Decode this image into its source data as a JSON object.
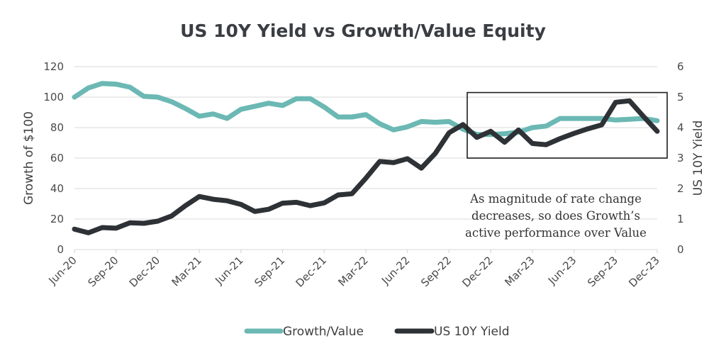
{
  "chart_data": {
    "type": "line",
    "title": "US 10Y Yield vs Growth/Value Equity",
    "xlabel": "",
    "ylabel": "Growth of $100",
    "y2label": "US 10Y Yield",
    "ylim": [
      0,
      120
    ],
    "y2lim": [
      0,
      6
    ],
    "yticks": [
      "0",
      "20",
      "40",
      "60",
      "80",
      "100",
      "120"
    ],
    "y2ticks": [
      "0",
      "1",
      "2",
      "3",
      "4",
      "5",
      "6"
    ],
    "xtick_labels": [
      "Jun-20",
      "Sep-20",
      "Dec-20",
      "Mar-21",
      "Jun-21",
      "Sep-21",
      "Dec-21",
      "Mar-22",
      "Jun-22",
      "Sep-22",
      "Dec-22",
      "Mar-23",
      "Jun-23",
      "Sep-23",
      "Dec-23"
    ],
    "x": [
      "Jun-20",
      "Jul-20",
      "Aug-20",
      "Sep-20",
      "Oct-20",
      "Nov-20",
      "Dec-20",
      "Jan-21",
      "Feb-21",
      "Mar-21",
      "Apr-21",
      "May-21",
      "Jun-21",
      "Jul-21",
      "Aug-21",
      "Sep-21",
      "Oct-21",
      "Nov-21",
      "Dec-21",
      "Jan-22",
      "Feb-22",
      "Mar-22",
      "Apr-22",
      "May-22",
      "Jun-22",
      "Jul-22",
      "Aug-22",
      "Sep-22",
      "Oct-22",
      "Nov-22",
      "Dec-22",
      "Jan-23",
      "Feb-23",
      "Mar-23",
      "Apr-23",
      "May-23",
      "Jun-23",
      "Jul-23",
      "Aug-23",
      "Sep-23",
      "Oct-23",
      "Nov-23",
      "Dec-23"
    ],
    "grid": true,
    "legend_position": "bottom-center",
    "series": [
      {
        "name": "Growth/Value",
        "axis": "left",
        "color": "#6bb8b4",
        "values": [
          100,
          106,
          109,
          108.5,
          106.5,
          100.5,
          100,
          97,
          92.5,
          87.5,
          89,
          86,
          92,
          94,
          96,
          94.5,
          99,
          99,
          93.5,
          87,
          87,
          88.5,
          82.5,
          78.5,
          80.5,
          84,
          83.5,
          84,
          79,
          75.5,
          75.5,
          76,
          77,
          80,
          81,
          86,
          86,
          86,
          86,
          85,
          85.5,
          86,
          84.5
        ]
      },
      {
        "name": "US 10Y Yield",
        "axis": "right",
        "color": "#2e3236",
        "values": [
          0.67,
          0.55,
          0.72,
          0.7,
          0.88,
          0.86,
          0.93,
          1.1,
          1.44,
          1.74,
          1.65,
          1.6,
          1.48,
          1.25,
          1.32,
          1.52,
          1.55,
          1.44,
          1.53,
          1.79,
          1.83,
          2.34,
          2.89,
          2.85,
          2.98,
          2.67,
          3.15,
          3.83,
          4.1,
          3.68,
          3.88,
          3.52,
          3.92,
          3.48,
          3.44,
          3.64,
          3.81,
          3.96,
          4.09,
          4.83,
          4.88,
          4.37,
          3.88
        ]
      }
    ],
    "annotation": {
      "box_range": {
        "x": [
          "Oct-22",
          "Dec-23"
        ],
        "y2": [
          3.0,
          5.15
        ]
      },
      "text_lines": [
        "As magnitude of rate change",
        "decreases, so does Growth’s",
        "active performance over Value"
      ]
    }
  }
}
